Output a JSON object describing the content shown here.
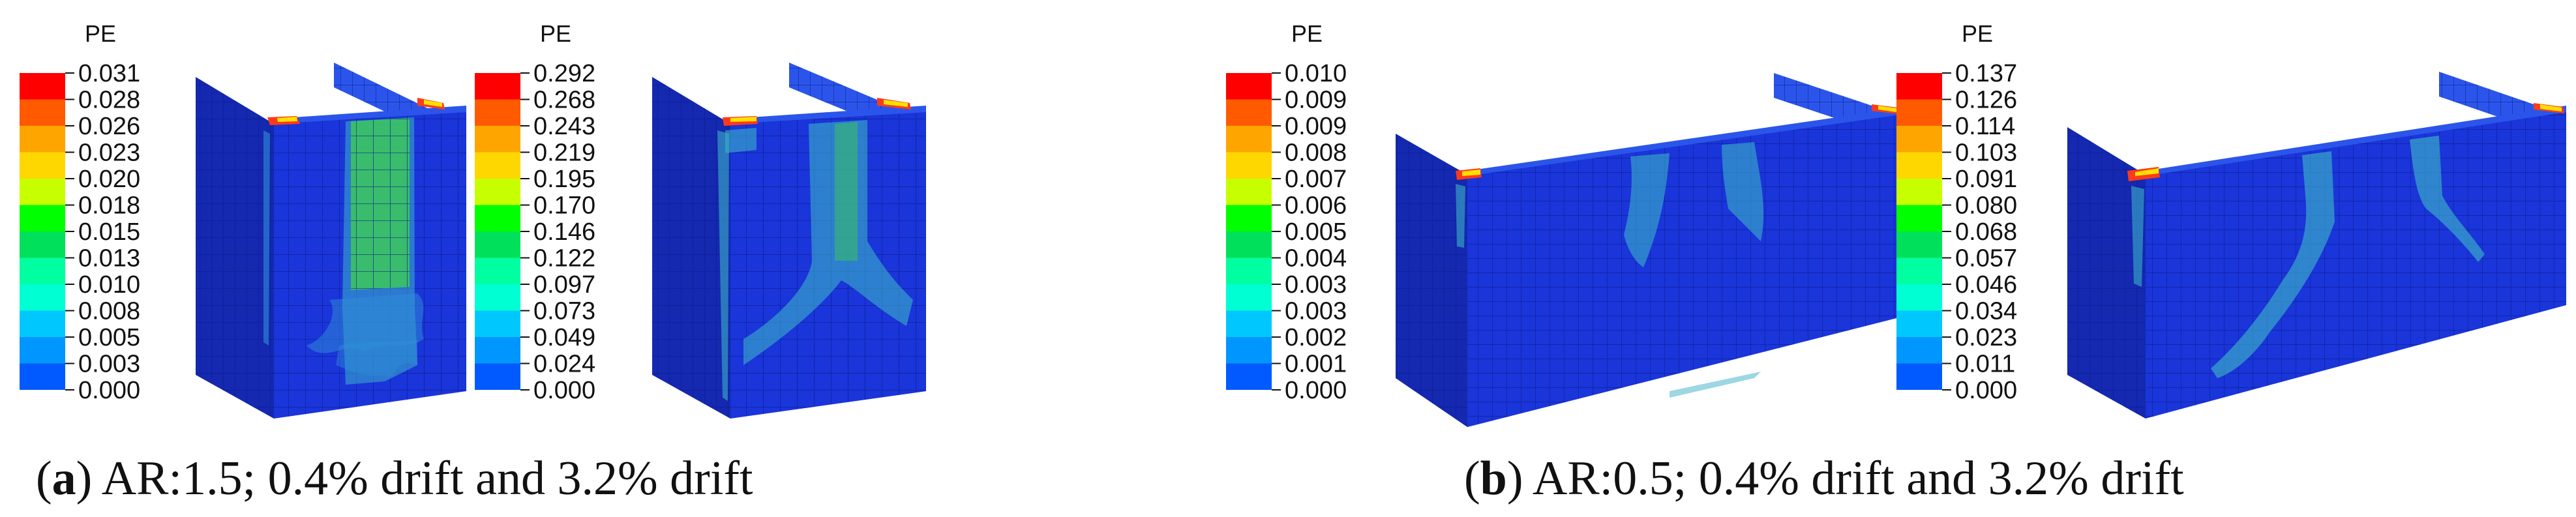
{
  "legend_title": "PE",
  "panels": [
    {
      "id": "a",
      "caption_letter": "a",
      "caption_text": "AR:1.5; 0.4% drift and 3.2% drift",
      "plots": [
        {
          "legend_values": [
            "0.031",
            "0.028",
            "0.026",
            "0.023",
            "0.020",
            "0.018",
            "0.015",
            "0.013",
            "0.010",
            "0.008",
            "0.005",
            "0.003",
            "0.000"
          ]
        },
        {
          "legend_values": [
            "0.292",
            "0.268",
            "0.243",
            "0.219",
            "0.195",
            "0.170",
            "0.146",
            "0.122",
            "0.097",
            "0.073",
            "0.049",
            "0.024",
            "0.000"
          ]
        }
      ]
    },
    {
      "id": "b",
      "caption_letter": "b",
      "caption_text": "AR:0.5; 0.4% drift and 3.2% drift",
      "plots": [
        {
          "legend_values": [
            "0.010",
            "0.009",
            "0.009",
            "0.008",
            "0.007",
            "0.006",
            "0.005",
            "0.004",
            "0.003",
            "0.003",
            "0.002",
            "0.001",
            "0.000"
          ]
        },
        {
          "legend_values": [
            "0.137",
            "0.126",
            "0.114",
            "0.103",
            "0.091",
            "0.080",
            "0.068",
            "0.057",
            "0.046",
            "0.034",
            "0.023",
            "0.011",
            "0.000"
          ]
        }
      ]
    }
  ],
  "colors": {
    "scale": [
      "#ff0000",
      "#ff5a00",
      "#ffa500",
      "#ffd700",
      "#c8ff00",
      "#00ff00",
      "#00e05a",
      "#00ffa0",
      "#00ffd2",
      "#00c8ff",
      "#0096ff",
      "#005aff",
      "#0000ff"
    ],
    "mesh_base": "#1a35d9",
    "mesh_light": "#2b55ea",
    "mesh_dark": "#1428b0",
    "mesh_line": "#0a1a8a",
    "damage_light": "#2f8fd8",
    "damage_mid": "#3ab0c8",
    "damage_green": "#3cc85a",
    "hot_red": "#ff3a1a",
    "hot_yellow": "#ffe000"
  }
}
